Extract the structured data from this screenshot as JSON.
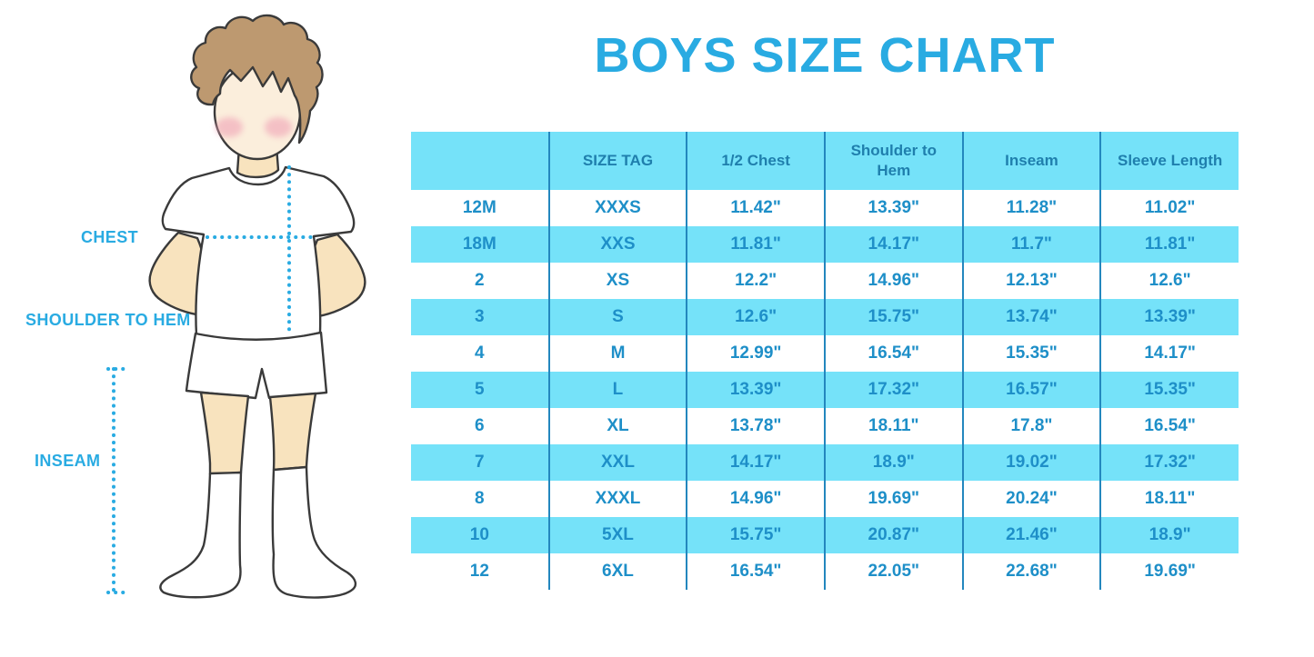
{
  "title": "BOYS SIZE CHART",
  "figure": {
    "description": "boy-wearing-tshirt-and-shorts-measurement-diagram",
    "labels": {
      "chest": "CHEST",
      "shoulder_to_hem": "SHOULDER TO HEM",
      "inseam": "INSEAM"
    }
  },
  "colors": {
    "accent_blue": "#29ABE2",
    "row_cyan": "#75E2F9",
    "divider_blue": "#2387BE",
    "header_text": "#1F7FAD",
    "cell_text": "#1E8FC8",
    "hair_brown": "#BD9970",
    "skin": "#F8E3BE",
    "face_skin": "#FBEEDC"
  },
  "chart_data": {
    "type": "table",
    "title": "BOYS SIZE CHART",
    "columns": [
      "",
      "SIZE TAG",
      "1/2 Chest",
      "Shoulder to Hem",
      "Inseam",
      "Sleeve Length"
    ],
    "rows": [
      [
        "12M",
        "XXXS",
        "11.42\"",
        "13.39\"",
        "11.28\"",
        "11.02\""
      ],
      [
        "18M",
        "XXS",
        "11.81\"",
        "14.17\"",
        "11.7\"",
        "11.81\""
      ],
      [
        "2",
        "XS",
        "12.2\"",
        "14.96\"",
        "12.13\"",
        "12.6\""
      ],
      [
        "3",
        "S",
        "12.6\"",
        "15.75\"",
        "13.74\"",
        "13.39\""
      ],
      [
        "4",
        "M",
        "12.99\"",
        "16.54\"",
        "15.35\"",
        "14.17\""
      ],
      [
        "5",
        "L",
        "13.39\"",
        "17.32\"",
        "16.57\"",
        "15.35\""
      ],
      [
        "6",
        "XL",
        "13.78\"",
        "18.11\"",
        "17.8\"",
        "16.54\""
      ],
      [
        "7",
        "XXL",
        "14.17\"",
        "18.9\"",
        "19.02\"",
        "17.32\""
      ],
      [
        "8",
        "XXXL",
        "14.96\"",
        "19.69\"",
        "20.24\"",
        "18.11\""
      ],
      [
        "10",
        "5XL",
        "15.75\"",
        "20.87\"",
        "21.46\"",
        "18.9\""
      ],
      [
        "12",
        "6XL",
        "16.54\"",
        "22.05\"",
        "22.68\"",
        "19.69\""
      ]
    ],
    "layout": {
      "header_background": "#75E2F9",
      "alternating_rows": [
        "#FFFFFF",
        "#75E2F9"
      ],
      "column_dividers": true,
      "row_dividers": false
    }
  }
}
